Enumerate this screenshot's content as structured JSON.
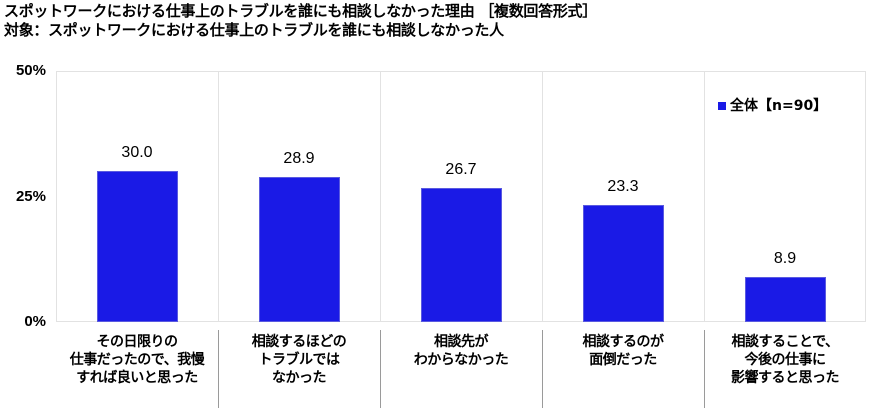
{
  "titles": {
    "line1": "スポットワークにおける仕事上のトラブルを誰にも相談しなかった理由 ［複数回答形式］",
    "line2": "対象：スポットワークにおける仕事上のトラブルを誰にも相談しなかった人"
  },
  "legend": {
    "label": "全体【n=90】",
    "color": "#1a1ae6"
  },
  "y_ticks": [
    "50%",
    "25%",
    "0%"
  ],
  "categories": [
    {
      "lines": [
        "その日限りの",
        "仕事だったので、我慢",
        "すれば良いと思った"
      ],
      "value": "30.0"
    },
    {
      "lines": [
        "相談するほどの",
        "トラブルでは",
        "なかった"
      ],
      "value": "28.9"
    },
    {
      "lines": [
        "相談先が",
        "わからなかった"
      ],
      "value": "26.7"
    },
    {
      "lines": [
        "相談するのが",
        "面倒だった"
      ],
      "value": "23.3"
    },
    {
      "lines": [
        "相談することで、",
        "今後の仕事に",
        "影響すると思った"
      ],
      "value": "8.9"
    }
  ],
  "chart_data": {
    "type": "bar",
    "title": "スポットワークにおける仕事上のトラブルを誰にも相談しなかった理由 ［複数回答形式］",
    "subtitle": "対象：スポットワークにおける仕事上のトラブルを誰にも相談しなかった人",
    "categories": [
      "その日限りの仕事だったので、我慢すれば良いと思った",
      "相談するほどのトラブルではなかった",
      "相談先がわからなかった",
      "相談するのが面倒だった",
      "相談することで、今後の仕事に影響すると思った"
    ],
    "series": [
      {
        "name": "全体【n=90】",
        "values": [
          30.0,
          28.9,
          26.7,
          23.3,
          8.9
        ],
        "color": "#1a1ae6"
      }
    ],
    "xlabel": "",
    "ylabel": "",
    "ylim": [
      0,
      50
    ],
    "yticks": [
      "0%",
      "25%",
      "50%"
    ],
    "grid": "vertical category separators",
    "legend_position": "top-right inside plot",
    "data_labels": true
  }
}
